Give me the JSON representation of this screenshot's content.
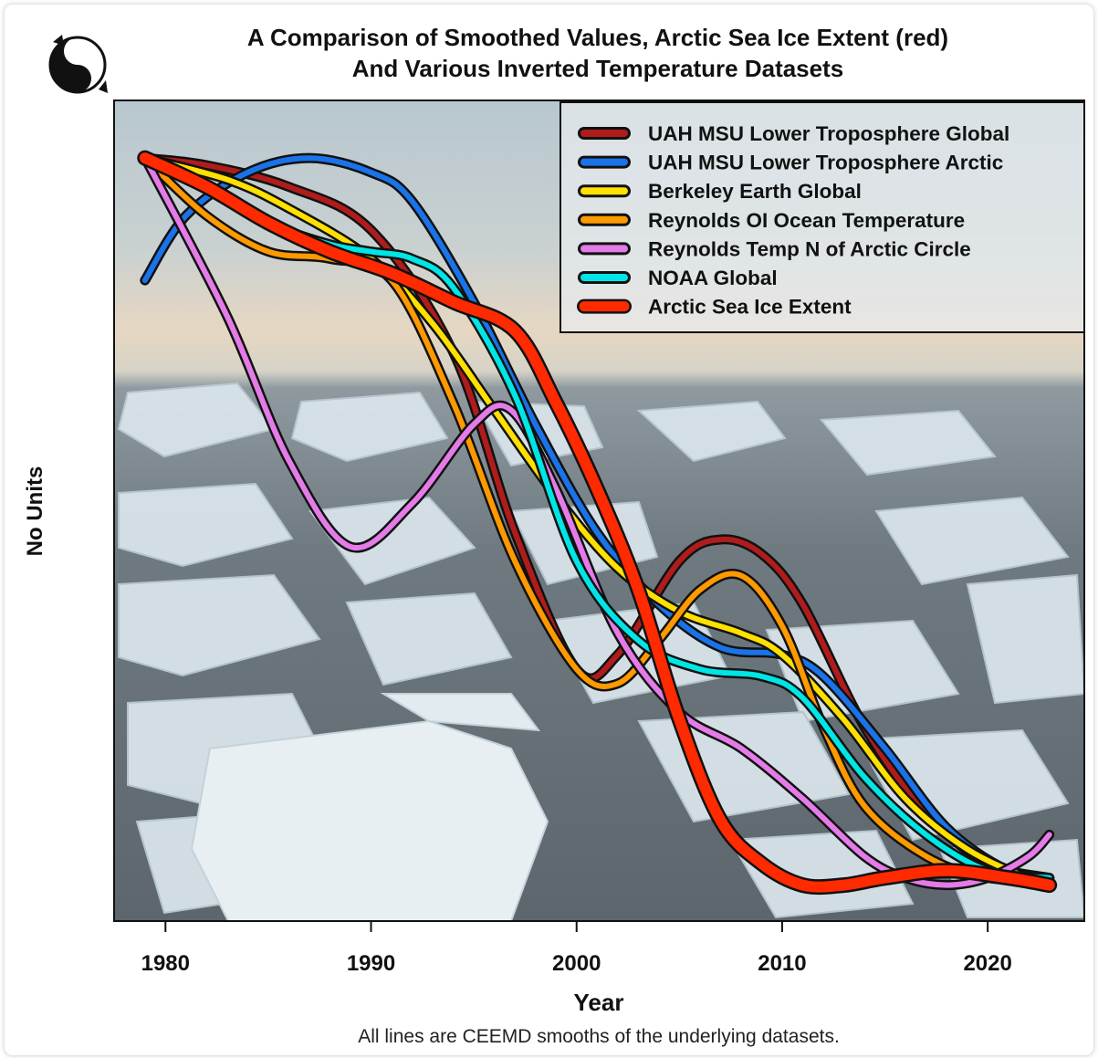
{
  "chart_data": {
    "type": "line",
    "title_line1": "A Comparison of Smoothed Values, Arctic Sea Ice Extent (red)",
    "title_line2": "And Various Inverted Temperature Datasets",
    "xlabel": "Year",
    "ylabel": "No Units",
    "caption": "All lines are CEEMD smooths of the underlying datasets.",
    "xlim": [
      1977.5,
      2024.7
    ],
    "ylim": [
      -0.06,
      1.08
    ],
    "x_ticks": [
      1980,
      1990,
      2000,
      2010,
      2020
    ],
    "legend_position": "top-right",
    "background": "photo of Arctic sea ice floes",
    "series": [
      {
        "name": "UAH MSU Lower Troposphere Global",
        "color": "#b01c1c",
        "x": [
          1979,
          1982,
          1986,
          1990,
          1994,
          1997,
          2000,
          2002,
          2005,
          2007,
          2009,
          2011,
          2014,
          2017,
          2020,
          2023
        ],
        "y": [
          1.0,
          0.99,
          0.96,
          0.9,
          0.73,
          0.48,
          0.29,
          0.31,
          0.44,
          0.47,
          0.45,
          0.38,
          0.21,
          0.09,
          0.02,
          0.0
        ]
      },
      {
        "name": "UAH MSU Lower Troposphere Arctic",
        "color": "#1a73e8",
        "x": [
          1979,
          1981,
          1984,
          1987,
          1990,
          1992,
          1995,
          1998,
          2001,
          2004,
          2007,
          2010,
          2012,
          2015,
          2018,
          2021,
          2023
        ],
        "y": [
          0.83,
          0.92,
          0.98,
          1.0,
          0.98,
          0.94,
          0.8,
          0.63,
          0.48,
          0.38,
          0.32,
          0.31,
          0.28,
          0.18,
          0.07,
          0.01,
          0.0
        ]
      },
      {
        "name": "Berkeley Earth Global",
        "color": "#ffe000",
        "x": [
          1979,
          1983,
          1986,
          1990,
          1993,
          1996,
          1999,
          2002,
          2005,
          2008,
          2010,
          2013,
          2016,
          2019,
          2022,
          2023
        ],
        "y": [
          1.0,
          0.97,
          0.93,
          0.86,
          0.77,
          0.65,
          0.53,
          0.43,
          0.37,
          0.34,
          0.31,
          0.22,
          0.11,
          0.04,
          0.0,
          0.0
        ]
      },
      {
        "name": "Reynolds OI Ocean Temperature",
        "color": "#ff9900",
        "x": [
          1979,
          1982,
          1985,
          1988,
          1991,
          1994,
          1997,
          2000,
          2002,
          2004,
          2006,
          2008,
          2010,
          2012,
          2014,
          2017,
          2020,
          2023
        ],
        "y": [
          1.0,
          0.92,
          0.87,
          0.86,
          0.83,
          0.66,
          0.44,
          0.29,
          0.27,
          0.33,
          0.4,
          0.42,
          0.35,
          0.21,
          0.1,
          0.03,
          0.0,
          0.0
        ]
      },
      {
        "name": "Reynolds Temp N of Arctic Circle",
        "color": "#e57be8",
        "x": [
          1979,
          1983,
          1986,
          1989,
          1992,
          1995,
          1996.8,
          1999,
          2002,
          2005,
          2008,
          2011,
          2014,
          2016,
          2018,
          2020,
          2022,
          2023
        ],
        "y": [
          1.0,
          0.78,
          0.58,
          0.46,
          0.52,
          0.63,
          0.65,
          0.54,
          0.34,
          0.23,
          0.18,
          0.11,
          0.03,
          0.0,
          -0.01,
          0.0,
          0.03,
          0.06
        ]
      },
      {
        "name": "NOAA Global",
        "color": "#00e5e5",
        "x": [
          1979,
          1982,
          1985,
          1988,
          1990,
          1992,
          1994,
          1997,
          2000,
          2003,
          2006,
          2009,
          2011,
          2014,
          2017,
          2020,
          2023
        ],
        "y": [
          1.0,
          0.96,
          0.91,
          0.88,
          0.87,
          0.86,
          0.82,
          0.67,
          0.44,
          0.33,
          0.29,
          0.28,
          0.25,
          0.14,
          0.06,
          0.01,
          0.0
        ]
      },
      {
        "name": "Arctic Sea Ice Extent",
        "color": "#ff2a00",
        "x": [
          1979,
          1982,
          1985,
          1988,
          1991,
          1994,
          1997,
          1999,
          2001,
          2003,
          2005,
          2007,
          2009,
          2011,
          2013,
          2015,
          2018,
          2021,
          2023
        ],
        "y": [
          1.0,
          0.96,
          0.91,
          0.87,
          0.84,
          0.8,
          0.76,
          0.66,
          0.54,
          0.4,
          0.22,
          0.08,
          0.02,
          -0.01,
          -0.01,
          0.0,
          0.01,
          0.0,
          -0.01
        ]
      }
    ]
  }
}
